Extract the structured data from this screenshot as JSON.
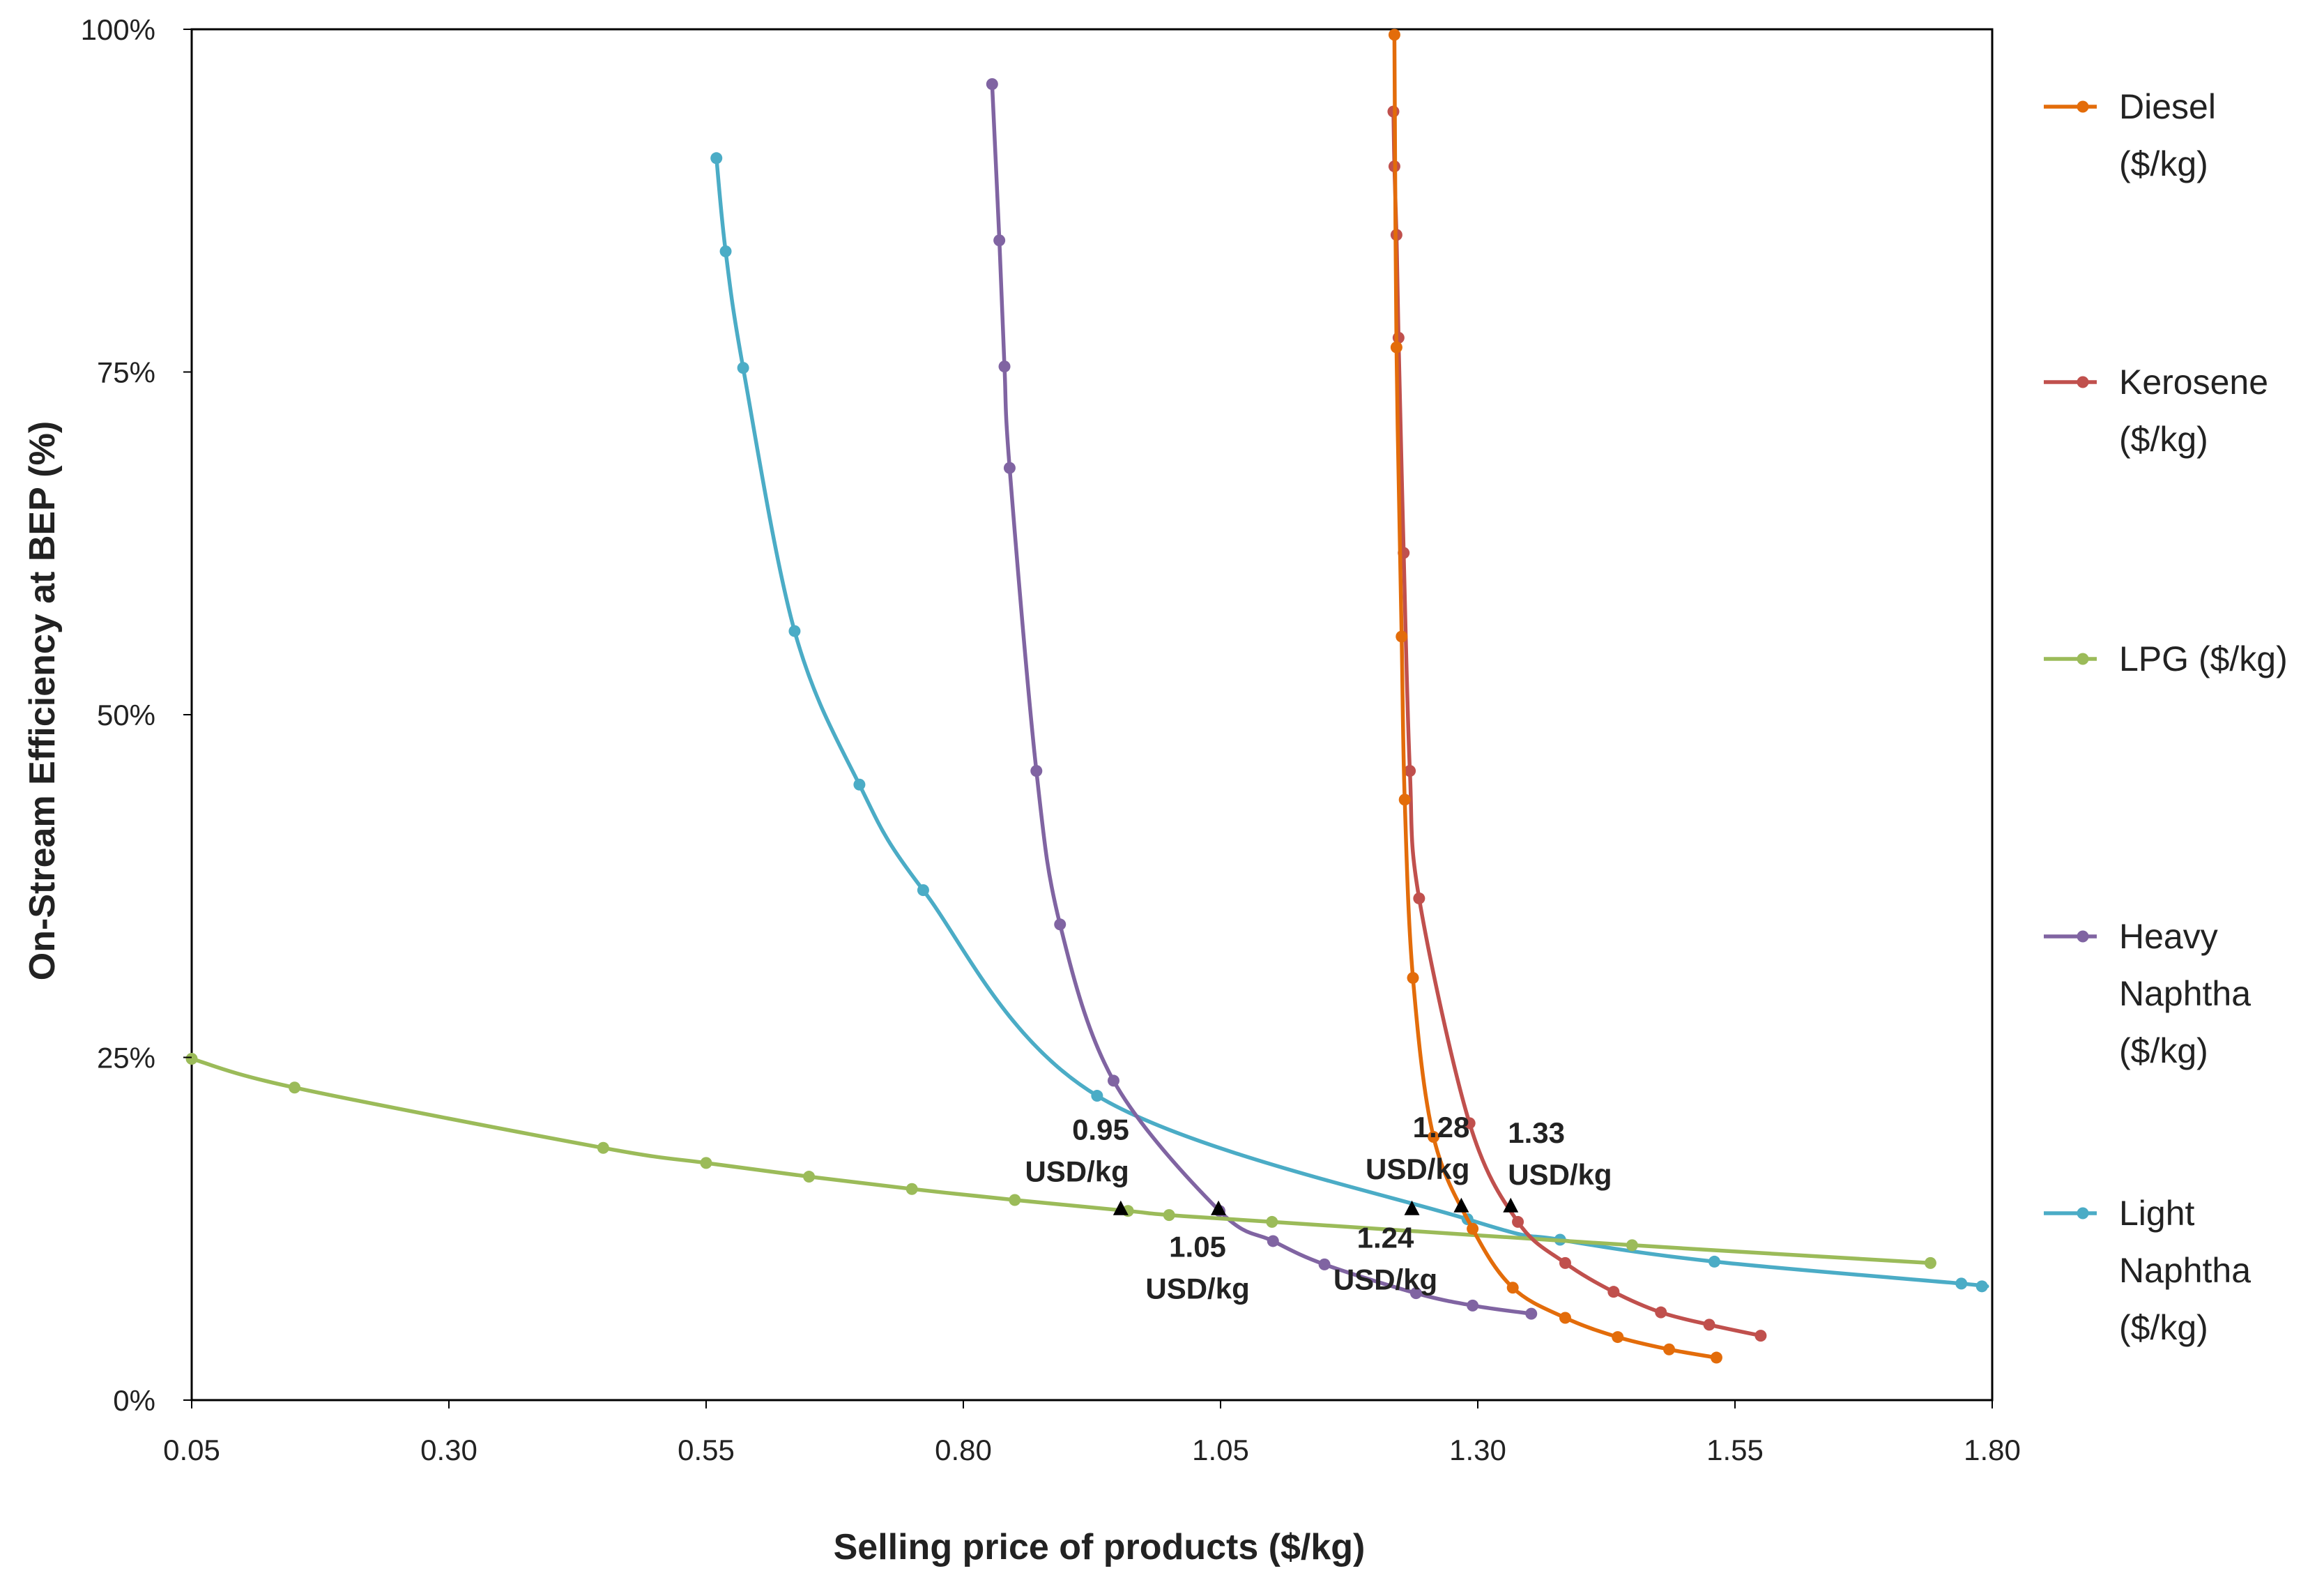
{
  "chart_data": {
    "type": "line",
    "title": "",
    "xlabel": "Selling price of products ($/kg)",
    "ylabel": "On-Stream Efficiency at BEP (%)",
    "xlim": [
      0.05,
      1.8
    ],
    "ylim": [
      0,
      100
    ],
    "x_ticks": [
      "0.05",
      "0.30",
      "0.55",
      "0.80",
      "1.05",
      "1.30",
      "1.55",
      "1.80"
    ],
    "x_tick_values": [
      0.05,
      0.3,
      0.55,
      0.8,
      1.05,
      1.3,
      1.55,
      1.8
    ],
    "y_ticks": [
      "0%",
      "25%",
      "50%",
      "75%",
      "100%"
    ],
    "y_tick_values": [
      0,
      25,
      50,
      75,
      100
    ],
    "legend_position": "right",
    "series": [
      {
        "name": "Diesel ($/kg)",
        "legend_lines": [
          "Diesel",
          "($/kg)"
        ],
        "color": "#E36C0A",
        "points": [
          [
            1.219,
            99.6
          ],
          [
            1.221,
            76.8
          ],
          [
            1.226,
            55.7
          ],
          [
            1.229,
            43.8
          ],
          [
            1.237,
            30.8
          ],
          [
            1.257,
            19.2
          ],
          [
            1.295,
            12.5
          ],
          [
            1.334,
            8.2
          ],
          [
            1.385,
            6.0
          ],
          [
            1.436,
            4.6
          ],
          [
            1.486,
            3.7
          ],
          [
            1.532,
            3.1
          ]
        ]
      },
      {
        "name": "Kerosene ($/kg)",
        "legend_lines": [
          "Kerosene",
          "($/kg)"
        ],
        "color": "#C0504D",
        "points": [
          [
            1.218,
            94.0
          ],
          [
            1.219,
            90.0
          ],
          [
            1.221,
            85.0
          ],
          [
            1.223,
            77.5
          ],
          [
            1.228,
            61.8
          ],
          [
            1.234,
            45.9
          ],
          [
            1.243,
            36.6
          ],
          [
            1.292,
            20.2
          ],
          [
            1.339,
            13.0
          ],
          [
            1.385,
            10.0
          ],
          [
            1.432,
            7.9
          ],
          [
            1.478,
            6.4
          ],
          [
            1.525,
            5.5
          ],
          [
            1.575,
            4.7
          ]
        ]
      },
      {
        "name": "LPG ($/kg)",
        "legend_lines": [
          "LPG ($/kg)"
        ],
        "color": "#9BBB59",
        "points": [
          [
            0.05,
            24.9
          ],
          [
            0.15,
            22.8
          ],
          [
            0.45,
            18.4
          ],
          [
            0.55,
            17.3
          ],
          [
            0.65,
            16.3
          ],
          [
            0.75,
            15.4
          ],
          [
            0.85,
            14.6
          ],
          [
            0.96,
            13.8
          ],
          [
            1.0,
            13.5
          ],
          [
            1.1,
            13.0
          ],
          [
            1.45,
            11.3
          ],
          [
            1.74,
            10.0
          ]
        ]
      },
      {
        "name": "Heavy Naphtha ($/kg)",
        "legend_lines": [
          "Heavy",
          "Naphtha",
          "($/kg)"
        ],
        "color": "#8064A2",
        "points": [
          [
            0.828,
            96.0
          ],
          [
            0.835,
            84.6
          ],
          [
            0.84,
            75.4
          ],
          [
            0.845,
            68.0
          ],
          [
            0.871,
            45.9
          ],
          [
            0.894,
            34.7
          ],
          [
            0.946,
            23.3
          ],
          [
            1.049,
            13.8
          ],
          [
            1.101,
            11.6
          ],
          [
            1.151,
            9.9
          ],
          [
            1.24,
            7.8
          ],
          [
            1.295,
            6.9
          ],
          [
            1.352,
            6.3
          ]
        ]
      },
      {
        "name": "Light Naphtha ($/kg)",
        "legend_lines": [
          "Light",
          "Naphtha",
          "($/kg)"
        ],
        "color": "#4BACC6",
        "points": [
          [
            0.56,
            90.6
          ],
          [
            0.569,
            83.8
          ],
          [
            0.586,
            75.3
          ],
          [
            0.636,
            56.1
          ],
          [
            0.699,
            44.9
          ],
          [
            0.761,
            37.2
          ],
          [
            0.93,
            22.2
          ],
          [
            1.29,
            13.2
          ],
          [
            1.38,
            11.7
          ],
          [
            1.53,
            10.1
          ],
          [
            1.77,
            8.5
          ],
          [
            1.79,
            8.3
          ]
        ]
      }
    ],
    "annotations": [
      {
        "lines": [
          "0.95",
          "USD/kg"
        ],
        "x": 0.953,
        "y": 13.9,
        "anchor": "above-left"
      },
      {
        "lines": [
          "1.05",
          "USD/kg"
        ],
        "x": 1.048,
        "y": 13.9,
        "anchor": "below"
      },
      {
        "lines": [
          "1.24",
          "USD/kg"
        ],
        "x": 1.236,
        "y": 13.9,
        "anchor": "below-left"
      },
      {
        "lines": [
          "1.28",
          "USD/kg"
        ],
        "x": 1.284,
        "y": 14.1,
        "anchor": "above-left"
      },
      {
        "lines": [
          "1.33",
          "USD/kg"
        ],
        "x": 1.332,
        "y": 14.1,
        "anchor": "above-right"
      }
    ]
  }
}
